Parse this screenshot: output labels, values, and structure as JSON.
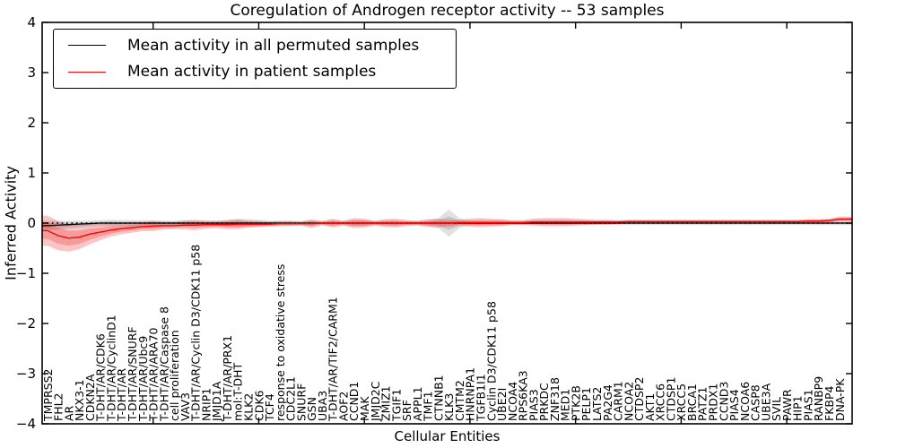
{
  "chart_data": {
    "type": "line",
    "title": "Coregulation of Androgen receptor activity -- 53 samples",
    "xlabel": "Cellular Entities",
    "ylabel": "Inferred Activity",
    "ylim": [
      -4,
      4
    ],
    "ytick_labels": [
      "4",
      "3",
      "2",
      "1",
      "0",
      "−1",
      "−2",
      "−3",
      "−4"
    ],
    "ytick_values": [
      4,
      3,
      2,
      1,
      0,
      -1,
      -2,
      -3,
      -4
    ],
    "grid": false,
    "legend": {
      "position": "upper left",
      "entries": [
        {
          "label": "Mean activity in all permuted samples",
          "color": "#000000"
        },
        {
          "label": "Mean activity in patient samples",
          "color": "#ff0000"
        }
      ]
    },
    "colors": {
      "patient_line": "#ff0000",
      "permuted_line": "#000000",
      "patient_band": "rgba(235,45,45,0.28)",
      "permuted_band": "rgba(40,40,40,0.14)",
      "zero_line": "#000000",
      "background": "#ffffff"
    },
    "categories": [
      "TMPRSS2",
      "FHL2",
      "AR",
      "NKX3-1",
      "CDKN2A",
      "T-DHT/AR/CDK6",
      "T-DHT/AR/CyclinD1",
      "T-DHT/AR",
      "T-DHT/AR/SNURF",
      "T-DHT/AR/Ubc9",
      "T-DHT/AR/ARA70",
      "T-DHT/AR/Caspase 8",
      "cell proliferation",
      "VAV3",
      "T-DHT/AR/Cyclin D3/CDK11 p58",
      "NRIP1",
      "JMJD1A",
      "T-DHT/AR/PRX1",
      "mol:T-DHT",
      "KLK2",
      "CDK6",
      "TCF4",
      "response to oxidative stress",
      "CDC2L1",
      "SNURF",
      "GSN",
      "UBA3",
      "T-DHT/AR/TIF2/CARM1",
      "AOF2",
      "CCND1",
      "MAK",
      "JMJD2C",
      "ZMIZ1",
      "TGIF1",
      "SRF",
      "APPL1",
      "TMF1",
      "CTNNB1",
      "KLK3",
      "CMTM2",
      "HNRNPA1",
      "TGFB1I1",
      "Cyclin D3/CDK11 p58",
      "UBE2I",
      "NCOA4",
      "RPS6KA3",
      "PIAS3",
      "PRKDC",
      "ZNF318",
      "MED1",
      "PTK2B",
      "PELP1",
      "LATS2",
      "PA2G4",
      "CARM1",
      "NCOA2",
      "CTDSP2",
      "AKT1",
      "XRCC6",
      "CTDSP1",
      "XRCC5",
      "BRCA1",
      "PATZ1",
      "PRDX1",
      "CCND3",
      "PIAS4",
      "NCOA6",
      "CASP8",
      "UBE3A",
      "SVIL",
      "PAWR",
      "HIP1",
      "PIAS1",
      "RANBP9",
      "FKBP4",
      "DNA-PK"
    ],
    "series": [
      {
        "name": "Mean activity in all permuted samples",
        "values": [
          -0.05,
          -0.04,
          -0.03,
          -0.02,
          -0.01,
          0.0,
          0.0,
          0.0,
          0.0,
          0.0,
          0.0,
          0.0,
          0.0,
          0.0,
          0.0,
          0.0,
          0.0,
          0.0,
          0.0,
          0.0,
          0.0,
          0.0,
          0.0,
          0.0,
          0.0,
          0.0,
          0.0,
          0.0,
          0.0,
          0.0,
          0.0,
          0.0,
          0.0,
          0.0,
          0.0,
          0.0,
          0.0,
          0.0,
          0.0,
          0.0,
          0.0,
          0.0,
          0.0,
          0.0,
          0.0,
          0.0,
          0.0,
          0.0,
          0.0,
          0.0,
          0.0,
          0.0,
          0.0,
          0.0,
          0.0,
          0.0,
          0.0,
          0.0,
          0.0,
          0.0,
          0.0,
          0.0,
          0.0,
          0.0,
          0.0,
          0.0,
          0.0,
          0.0,
          0.0,
          0.0,
          0.0,
          0.0,
          0.0,
          0.0,
          0.0,
          0.0
        ],
        "band_halfwidth": [
          0.1,
          0.09,
          0.08,
          0.07,
          0.06,
          0.06,
          0.07,
          0.06,
          0.06,
          0.06,
          0.06,
          0.05,
          0.05,
          0.06,
          0.06,
          0.05,
          0.05,
          0.06,
          0.08,
          0.08,
          0.07,
          0.05,
          0.05,
          0.05,
          0.04,
          0.05,
          0.04,
          0.05,
          0.04,
          0.06,
          0.06,
          0.04,
          0.05,
          0.05,
          0.04,
          0.04,
          0.05,
          0.1,
          0.27,
          0.1,
          0.05,
          0.05,
          0.05,
          0.05,
          0.04,
          0.04,
          0.04,
          0.04,
          0.04,
          0.04,
          0.04,
          0.04,
          0.04,
          0.04,
          0.04,
          0.04,
          0.04,
          0.04,
          0.04,
          0.04,
          0.04,
          0.04,
          0.04,
          0.04,
          0.04,
          0.04,
          0.04,
          0.04,
          0.04,
          0.04,
          0.04,
          0.04,
          0.04,
          0.04,
          0.04,
          0.04
        ]
      },
      {
        "name": "Mean activity in patient samples",
        "values": [
          -0.15,
          -0.25,
          -0.3,
          -0.28,
          -0.22,
          -0.18,
          -0.14,
          -0.11,
          -0.09,
          -0.07,
          -0.06,
          -0.05,
          -0.05,
          -0.04,
          -0.04,
          -0.03,
          -0.03,
          -0.03,
          -0.02,
          -0.02,
          -0.02,
          -0.02,
          -0.01,
          -0.01,
          -0.01,
          -0.01,
          0.0,
          0.0,
          0.0,
          0.0,
          0.0,
          0.0,
          0.0,
          0.0,
          0.0,
          0.0,
          0.0,
          0.0,
          0.0,
          0.01,
          0.01,
          0.01,
          0.01,
          0.01,
          0.01,
          0.01,
          0.02,
          0.02,
          0.02,
          0.02,
          0.02,
          0.02,
          0.02,
          0.02,
          0.02,
          0.03,
          0.03,
          0.03,
          0.03,
          0.03,
          0.03,
          0.03,
          0.03,
          0.03,
          0.03,
          0.03,
          0.03,
          0.03,
          0.03,
          0.03,
          0.03,
          0.03,
          0.04,
          0.04,
          0.05,
          0.08
        ],
        "band_halfwidth": [
          0.3,
          0.29,
          0.27,
          0.24,
          0.2,
          0.16,
          0.13,
          0.11,
          0.1,
          0.09,
          0.1,
          0.08,
          0.07,
          0.09,
          0.1,
          0.08,
          0.07,
          0.09,
          0.1,
          0.07,
          0.06,
          0.05,
          0.05,
          0.05,
          0.04,
          0.09,
          0.04,
          0.09,
          0.05,
          0.1,
          0.09,
          0.05,
          0.08,
          0.09,
          0.06,
          0.05,
          0.08,
          0.09,
          0.07,
          0.06,
          0.08,
          0.09,
          0.08,
          0.07,
          0.05,
          0.05,
          0.07,
          0.08,
          0.08,
          0.08,
          0.07,
          0.06,
          0.05,
          0.05,
          0.04,
          0.04,
          0.04,
          0.04,
          0.04,
          0.04,
          0.04,
          0.04,
          0.04,
          0.04,
          0.04,
          0.04,
          0.04,
          0.04,
          0.04,
          0.04,
          0.04,
          0.04,
          0.04,
          0.04,
          0.04,
          0.05
        ]
      }
    ]
  }
}
